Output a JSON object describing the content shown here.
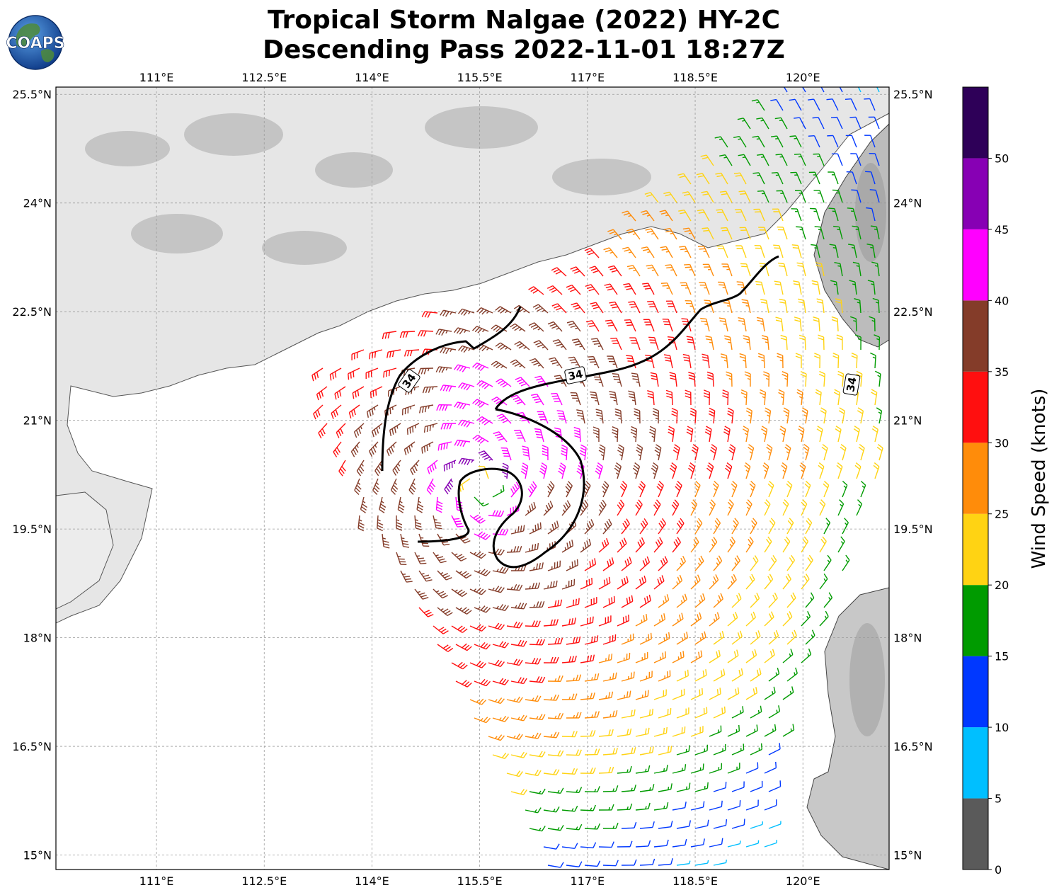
{
  "title": {
    "line1": "Tropical Storm Nalgae (2022) HY-2C",
    "line2": "Descending Pass 2022-11-01 18:27Z"
  },
  "logo": {
    "text": "COAPS"
  },
  "map": {
    "lon_range": [
      109.6,
      121.2
    ],
    "lat_range": [
      14.8,
      25.6
    ],
    "lon_ticks": [
      111,
      112.5,
      114,
      115.5,
      117,
      118.5,
      120
    ],
    "lon_tick_labels": [
      "111°E",
      "112.5°E",
      "114°E",
      "115.5°E",
      "117°E",
      "118.5°E",
      "120°E"
    ],
    "lat_ticks": [
      25.5,
      24,
      22.5,
      21,
      19.5,
      18,
      16.5,
      15
    ],
    "lat_tick_labels": [
      "25.5°N",
      "24°N",
      "22.5°N",
      "21°N",
      "19.5°N",
      "18°N",
      "16.5°N",
      "15°N"
    ],
    "gridlines": true,
    "storm_center": {
      "lon": 115.5,
      "lat": 20.1
    },
    "contour_34kt": {
      "value": "34",
      "label_text": "34"
    }
  },
  "colorbar": {
    "label": "Wind Speed (knots)",
    "ticks": [
      "0",
      "5",
      "10",
      "15",
      "20",
      "25",
      "30",
      "35",
      "40",
      "45",
      "50"
    ],
    "bins": [
      {
        "min": 0,
        "max": 5,
        "color": "#5a5a5a"
      },
      {
        "min": 5,
        "max": 10,
        "color": "#00bfff"
      },
      {
        "min": 10,
        "max": 15,
        "color": "#0038ff"
      },
      {
        "min": 15,
        "max": 20,
        "color": "#009b00"
      },
      {
        "min": 20,
        "max": 25,
        "color": "#ffd313"
      },
      {
        "min": 25,
        "max": 30,
        "color": "#ff8c0a"
      },
      {
        "min": 30,
        "max": 35,
        "color": "#ff0f0f"
      },
      {
        "min": 35,
        "max": 40,
        "color": "#843c29"
      },
      {
        "min": 40,
        "max": 45,
        "color": "#ff00ff"
      },
      {
        "min": 45,
        "max": 50,
        "color": "#8700b4"
      },
      {
        "min": 50,
        "max": 55,
        "color": "#2e0058"
      }
    ]
  }
}
